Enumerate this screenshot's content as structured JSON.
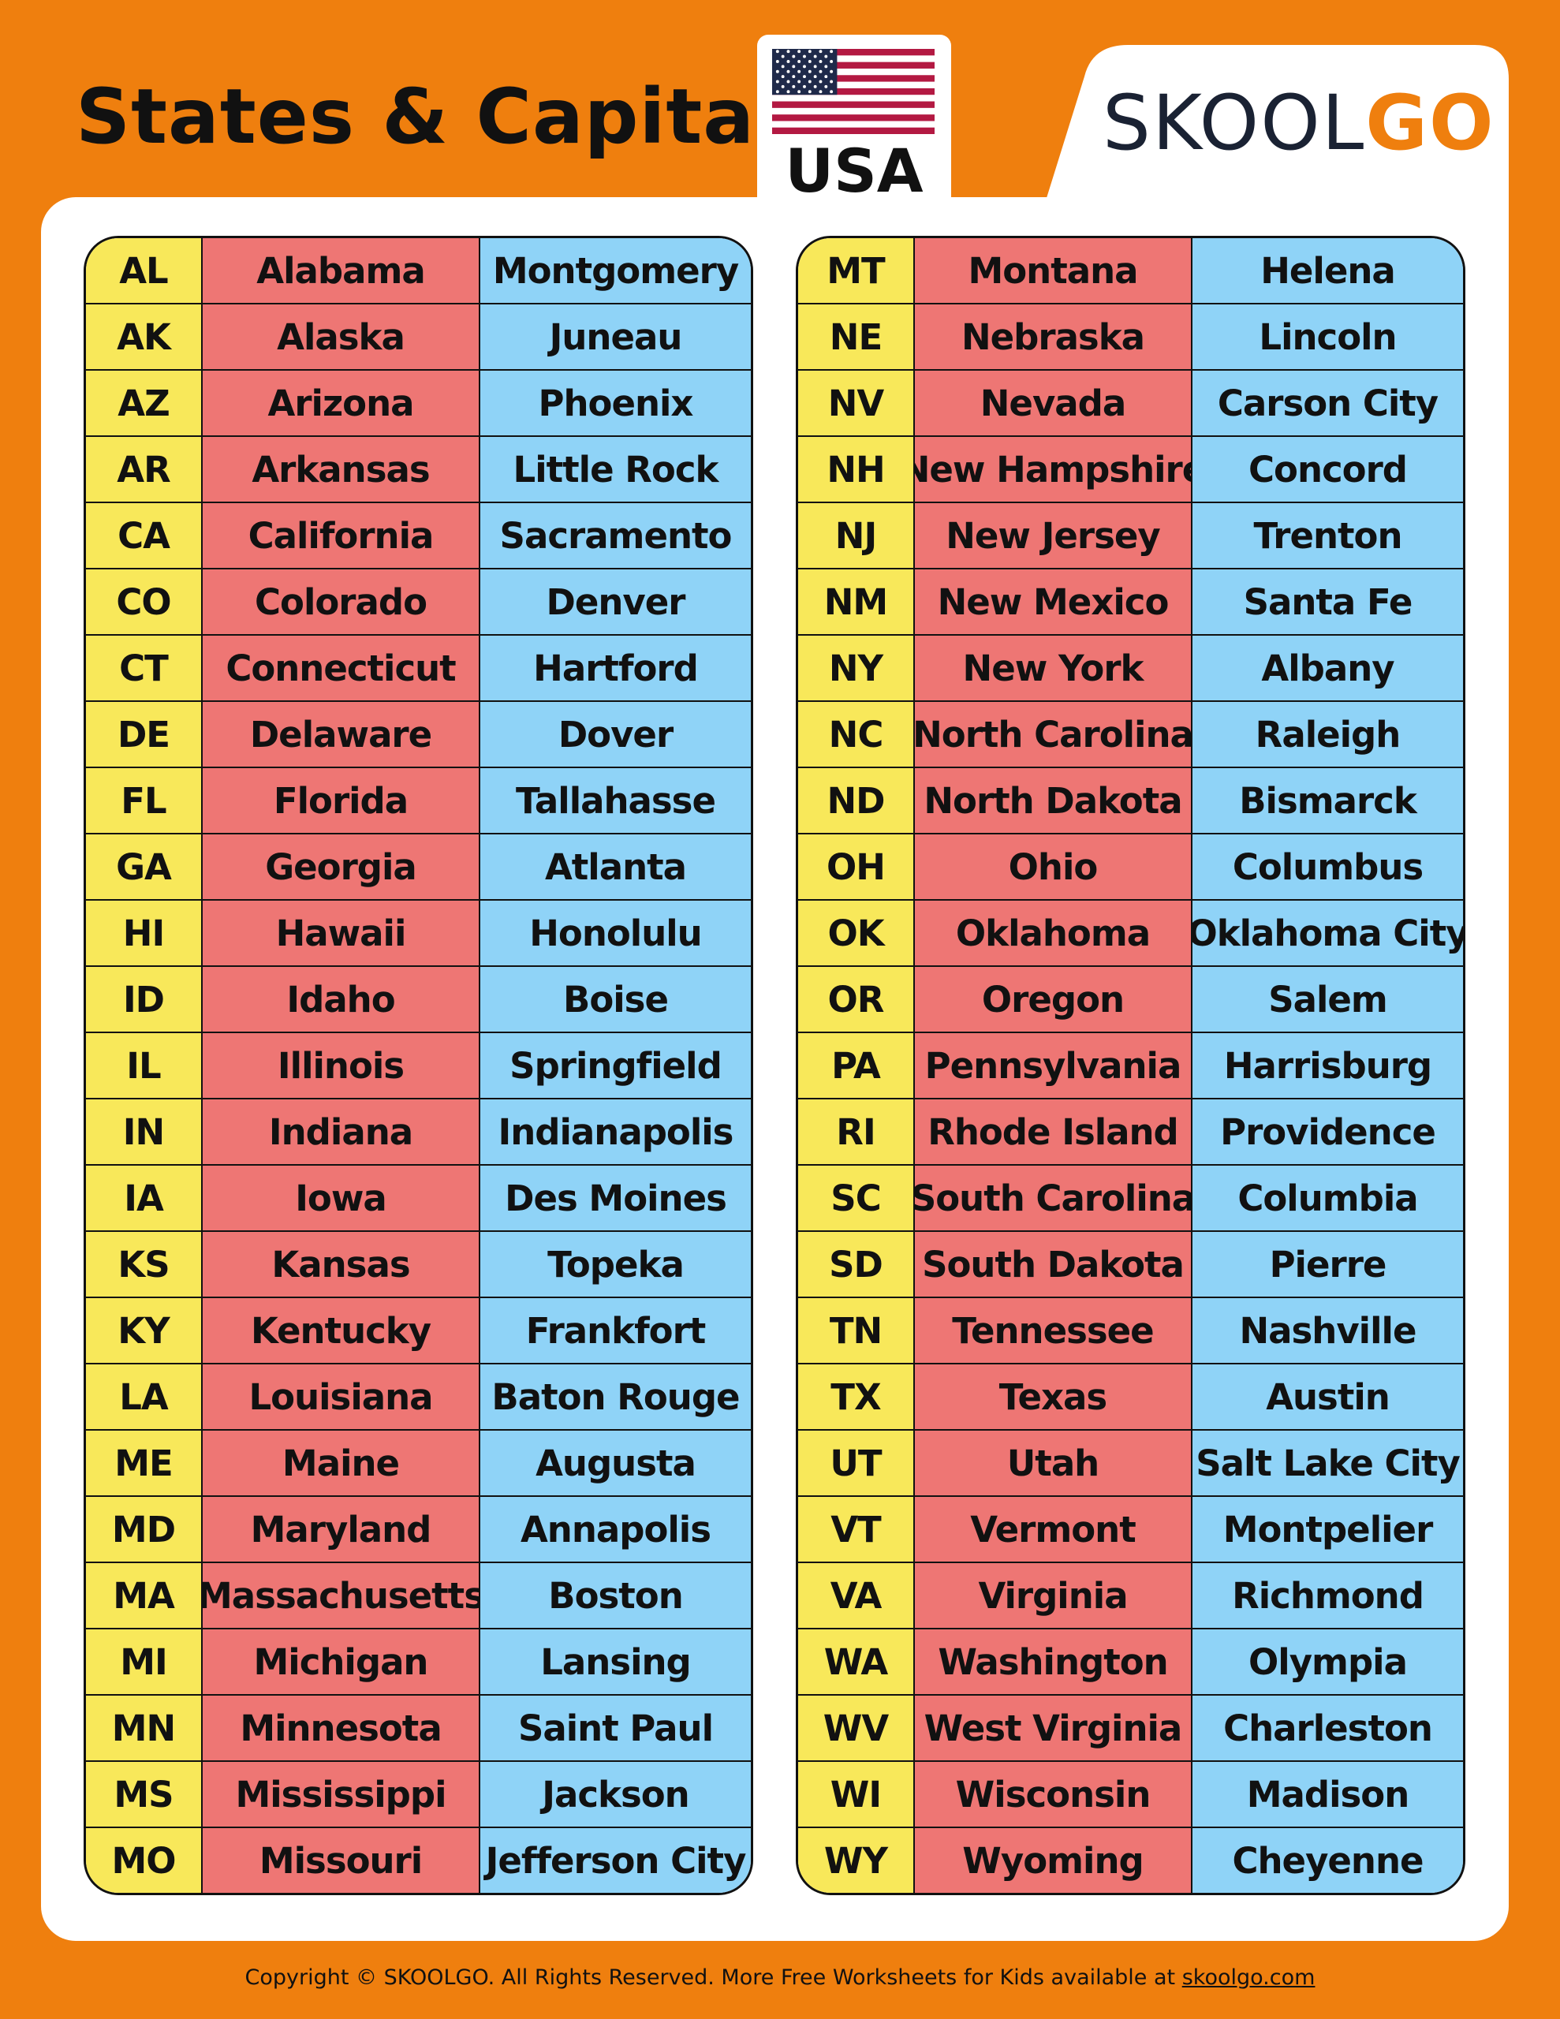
{
  "header": {
    "title": "States & Capitals",
    "flag_label": "USA",
    "logo_text_dark": "SKOOL",
    "logo_text_accent": "GO"
  },
  "colors": {
    "background": "#EF7F0E",
    "code": "#F8E85A",
    "state": "#EE7674",
    "capital": "#8FD3F7"
  },
  "left_table": [
    [
      "AL",
      "Alabama",
      "Montgomery"
    ],
    [
      "AK",
      "Alaska",
      "Juneau"
    ],
    [
      "AZ",
      "Arizona",
      "Phoenix"
    ],
    [
      "AR",
      "Arkansas",
      "Little Rock"
    ],
    [
      "CA",
      "California",
      "Sacramento"
    ],
    [
      "CO",
      "Colorado",
      "Denver"
    ],
    [
      "CT",
      "Connecticut",
      "Hartford"
    ],
    [
      "DE",
      "Delaware",
      "Dover"
    ],
    [
      "FL",
      "Florida",
      "Tallahasse"
    ],
    [
      "GA",
      "Georgia",
      "Atlanta"
    ],
    [
      "HI",
      "Hawaii",
      "Honolulu"
    ],
    [
      "ID",
      "Idaho",
      "Boise"
    ],
    [
      "IL",
      "Illinois",
      "Springfield"
    ],
    [
      "IN",
      "Indiana",
      "Indianapolis"
    ],
    [
      "IA",
      "Iowa",
      "Des Moines"
    ],
    [
      "KS",
      "Kansas",
      "Topeka"
    ],
    [
      "KY",
      "Kentucky",
      "Frankfort"
    ],
    [
      "LA",
      "Louisiana",
      "Baton Rouge"
    ],
    [
      "ME",
      "Maine",
      "Augusta"
    ],
    [
      "MD",
      "Maryland",
      "Annapolis"
    ],
    [
      "MA",
      "Massachusetts",
      "Boston"
    ],
    [
      "MI",
      "Michigan",
      "Lansing"
    ],
    [
      "MN",
      "Minnesota",
      "Saint Paul"
    ],
    [
      "MS",
      "Mississippi",
      "Jackson"
    ],
    [
      "MO",
      "Missouri",
      "Jefferson City"
    ]
  ],
  "right_table": [
    [
      "MT",
      "Montana",
      "Helena"
    ],
    [
      "NE",
      "Nebraska",
      "Lincoln"
    ],
    [
      "NV",
      "Nevada",
      "Carson City"
    ],
    [
      "NH",
      "New Hampshire",
      "Concord"
    ],
    [
      "NJ",
      "New Jersey",
      "Trenton"
    ],
    [
      "NM",
      "New Mexico",
      "Santa Fe"
    ],
    [
      "NY",
      "New York",
      "Albany"
    ],
    [
      "NC",
      "North Carolina",
      "Raleigh"
    ],
    [
      "ND",
      "North Dakota",
      "Bismarck"
    ],
    [
      "OH",
      "Ohio",
      "Columbus"
    ],
    [
      "OK",
      "Oklahoma",
      "Oklahoma City"
    ],
    [
      "OR",
      "Oregon",
      "Salem"
    ],
    [
      "PA",
      "Pennsylvania",
      "Harrisburg"
    ],
    [
      "RI",
      "Rhode Island",
      "Providence"
    ],
    [
      "SC",
      "South Carolina",
      "Columbia"
    ],
    [
      "SD",
      "South Dakota",
      "Pierre"
    ],
    [
      "TN",
      "Tennessee",
      "Nashville"
    ],
    [
      "TX",
      "Texas",
      "Austin"
    ],
    [
      "UT",
      "Utah",
      "Salt Lake City"
    ],
    [
      "VT",
      "Vermont",
      "Montpelier"
    ],
    [
      "VA",
      "Virginia",
      "Richmond"
    ],
    [
      "WA",
      "Washington",
      "Olympia"
    ],
    [
      "WV",
      "West Virginia",
      "Charleston"
    ],
    [
      "WI",
      "Wisconsin",
      "Madison"
    ],
    [
      "WY",
      "Wyoming",
      "Cheyenne"
    ]
  ],
  "footer": {
    "text": "Copyright © SKOOLGO. All Rights Reserved. More Free Worksheets for Kids available at ",
    "link": "skoolgo.com"
  }
}
